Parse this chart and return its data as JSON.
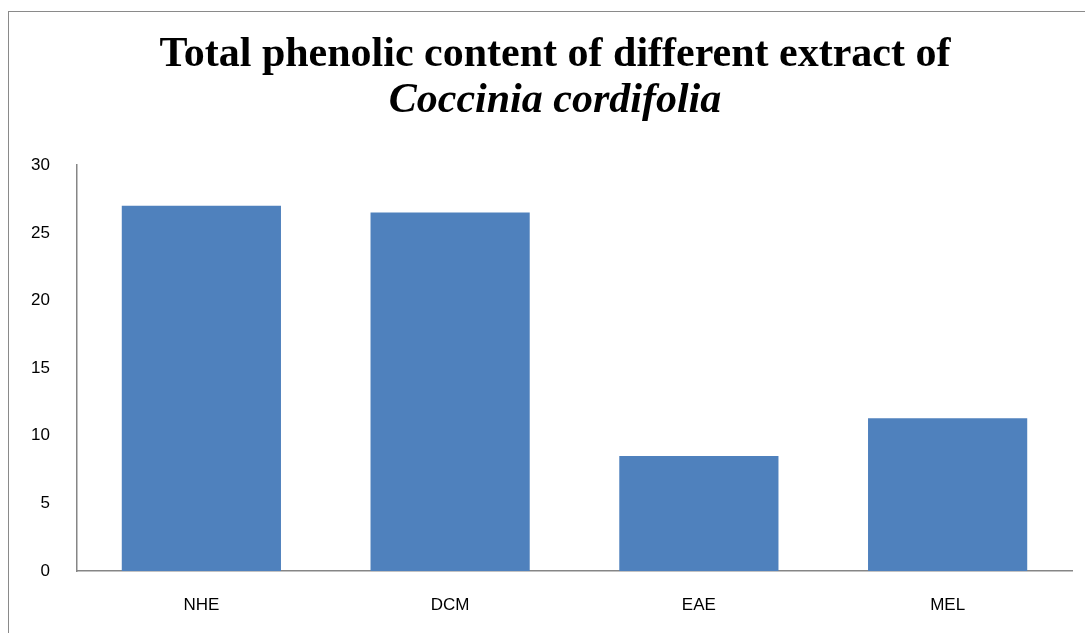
{
  "chart_data": {
    "type": "bar",
    "title": "Total phenolic content of different extract of Coccinia cordifolia",
    "categories": [
      "NHE",
      "DCM",
      "EAE",
      "MEL"
    ],
    "values": [
      27,
      26.5,
      8.5,
      11.3
    ],
    "color": "#4f81bd",
    "ylim": [
      0,
      30
    ],
    "yticks": [
      0,
      5,
      10,
      15,
      20,
      25,
      30
    ]
  }
}
